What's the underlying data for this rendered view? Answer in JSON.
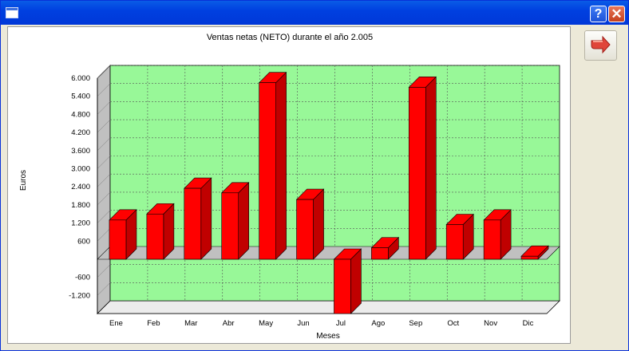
{
  "window": {
    "title": ""
  },
  "titlebar_buttons": {
    "help_label": "?",
    "close_label": "✕"
  },
  "toolbar": {
    "exit_icon": "exit-arrow-icon"
  },
  "colors": {
    "plot_background": "#98f898",
    "bar_face": "#ff0000",
    "bar_side": "#c00000",
    "wall": "#c0c0c0",
    "floor": "#ececec"
  },
  "chart_data": {
    "type": "bar",
    "title": "Ventas netas (NETO) durante el año 2.005",
    "xlabel": "Meses",
    "ylabel": "Euros",
    "categories": [
      "Ene",
      "Feb",
      "Mar",
      "Abr",
      "May",
      "Jun",
      "Jul",
      "Ago",
      "Sep",
      "Oct",
      "Nov",
      "Dic"
    ],
    "values": [
      1300,
      1500,
      2350,
      2200,
      5850,
      1980,
      -1800,
      380,
      5700,
      1150,
      1300,
      100
    ],
    "yticks": [
      6000,
      5400,
      4800,
      4200,
      3600,
      3000,
      2400,
      1800,
      1200,
      600,
      -600,
      -1200
    ],
    "ytick_labels": [
      "6.000",
      "5.400",
      "4.800",
      "4.200",
      "3.600",
      "3.000",
      "2.400",
      "1.800",
      "1.200",
      "600",
      "-600",
      "-1.200"
    ],
    "ylim": [
      -1800,
      6000
    ],
    "grid": true,
    "style": "3d"
  }
}
